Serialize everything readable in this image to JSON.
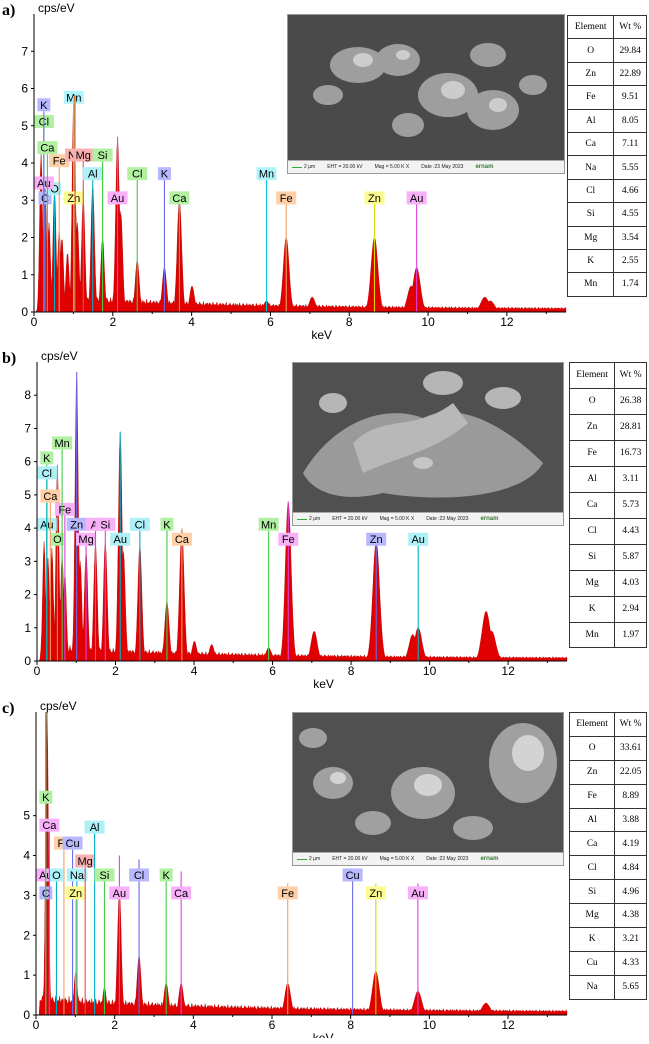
{
  "chart_data": [
    {
      "type": "line",
      "panel_label": "a)",
      "ylabel": "cps/eV",
      "xlabel": "keV",
      "xlim": [
        0,
        13.5
      ],
      "ylim": [
        0,
        8
      ],
      "x_ticks": [
        0,
        2,
        4,
        6,
        8,
        10,
        12
      ],
      "y_ticks": [
        0,
        1,
        2,
        3,
        4,
        5,
        6,
        7
      ],
      "peaks": [
        {
          "x": 0.18,
          "y": 4.3
        },
        {
          "x": 0.28,
          "y": 3.6
        },
        {
          "x": 0.38,
          "y": 2.4
        },
        {
          "x": 0.52,
          "y": 3.3
        },
        {
          "x": 0.64,
          "y": 2.2
        },
        {
          "x": 0.71,
          "y": 2.0
        },
        {
          "x": 0.85,
          "y": 1.6
        },
        {
          "x": 1.01,
          "y": 5.8
        },
        {
          "x": 1.1,
          "y": 2.4
        },
        {
          "x": 1.25,
          "y": 3.1
        },
        {
          "x": 1.49,
          "y": 3.4
        },
        {
          "x": 1.74,
          "y": 2.0
        },
        {
          "x": 2.12,
          "y": 4.7
        },
        {
          "x": 2.2,
          "y": 2.7
        },
        {
          "x": 2.62,
          "y": 1.4
        },
        {
          "x": 3.31,
          "y": 1.2
        },
        {
          "x": 3.69,
          "y": 3.0
        },
        {
          "x": 4.01,
          "y": 0.7
        },
        {
          "x": 5.9,
          "y": 0.3
        },
        {
          "x": 6.4,
          "y": 2.0
        },
        {
          "x": 7.06,
          "y": 0.4
        },
        {
          "x": 8.64,
          "y": 2.0
        },
        {
          "x": 9.57,
          "y": 0.7
        },
        {
          "x": 9.71,
          "y": 1.2
        },
        {
          "x": 11.44,
          "y": 0.4
        },
        {
          "x": 11.58,
          "y": 0.3
        }
      ],
      "element_markers": [
        {
          "x": 0.28,
          "y": 3.05,
          "label": "C",
          "color": "#6a6af0",
          "fill": "#b8b8ff"
        },
        {
          "x": 0.52,
          "y": 3.3,
          "label": "O",
          "color": "#00b0c8",
          "fill": "#aef0f8"
        },
        {
          "x": 0.64,
          "y": 4.05,
          "label": "Fe",
          "color": "#f0a060",
          "fill": "#ffd0a8"
        },
        {
          "x": 1.01,
          "y": 5.75,
          "label": "Mn",
          "color": "#00c8d8",
          "fill": "#b0f4fb"
        },
        {
          "x": 1.01,
          "y": 3.05,
          "label": "Zn",
          "color": "#d8d800",
          "fill": "#fbfb90"
        },
        {
          "x": 1.04,
          "y": 4.2,
          "label": "Na",
          "color": "#e05050",
          "fill": "#f8b0b0"
        },
        {
          "x": 1.25,
          "y": 4.2,
          "label": "Mg",
          "color": "#e05050",
          "fill": "#f8b0b0"
        },
        {
          "x": 1.49,
          "y": 3.7,
          "label": "Al",
          "color": "#00b0c8",
          "fill": "#aef0f8"
        },
        {
          "x": 1.74,
          "y": 4.2,
          "label": "Si",
          "color": "#44cc44",
          "fill": "#b0f0a0"
        },
        {
          "x": 2.12,
          "y": 3.05,
          "label": "Au",
          "color": "#e040e0",
          "fill": "#f8b0f8"
        },
        {
          "x": 0.25,
          "y": 3.45,
          "label": "Au",
          "color": "#e040e0",
          "fill": "#f8b0f8"
        },
        {
          "x": 2.62,
          "y": 3.7,
          "label": "Cl",
          "color": "#44cc44",
          "fill": "#b0f0a0"
        },
        {
          "x": 3.31,
          "y": 3.7,
          "label": "K",
          "color": "#6a6af0",
          "fill": "#b8b8ff"
        },
        {
          "x": 0.25,
          "y": 5.1,
          "label": "Cl",
          "color": "#44cc44",
          "fill": "#b0f0a0"
        },
        {
          "x": 0.25,
          "y": 5.55,
          "label": "K",
          "color": "#6a6af0",
          "fill": "#b8b8ff"
        },
        {
          "x": 0.34,
          "y": 4.4,
          "label": "Ca",
          "color": "#44cc44",
          "fill": "#b0f0a0"
        },
        {
          "x": 3.69,
          "y": 3.05,
          "label": "Ca",
          "color": "#44cc44",
          "fill": "#b0f0a0"
        },
        {
          "x": 5.9,
          "y": 3.7,
          "label": "Mn",
          "color": "#00c8d8",
          "fill": "#b0f4fb"
        },
        {
          "x": 6.4,
          "y": 3.05,
          "label": "Fe",
          "color": "#f0a060",
          "fill": "#ffd0a8"
        },
        {
          "x": 8.64,
          "y": 3.05,
          "label": "Zn",
          "color": "#d8d800",
          "fill": "#fbfb90"
        },
        {
          "x": 9.71,
          "y": 3.05,
          "label": "Au",
          "color": "#e040e0",
          "fill": "#f8b0f8"
        }
      ],
      "table": {
        "headers": [
          "Element",
          "Wt %"
        ],
        "rows": [
          [
            "O",
            "29.84"
          ],
          [
            "Zn",
            "22.89"
          ],
          [
            "Fe",
            "9.51"
          ],
          [
            "Al",
            "8.05"
          ],
          [
            "Ca",
            "7.11"
          ],
          [
            "Na",
            "5.55"
          ],
          [
            "Cl",
            "4.66"
          ],
          [
            "Si",
            "4.55"
          ],
          [
            "Mg",
            "3.54"
          ],
          [
            "K",
            "2.55"
          ],
          [
            "Mn",
            "1.74"
          ]
        ]
      },
      "sem": {
        "scale": "2 µm",
        "eht": "EHT = 20.00 kV",
        "mag": "Mag = 5.00 K X",
        "date": "Date :23 May 2023",
        "logo": "ernam"
      }
    },
    {
      "type": "line",
      "panel_label": "b)",
      "ylabel": "cps/eV",
      "xlabel": "keV",
      "xlim": [
        0,
        13.5
      ],
      "ylim": [
        0,
        9
      ],
      "x_ticks": [
        0,
        2,
        4,
        6,
        8,
        10,
        12
      ],
      "y_ticks": [
        0,
        1,
        2,
        3,
        4,
        5,
        6,
        7,
        8
      ],
      "peaks": [
        {
          "x": 0.18,
          "y": 3.6
        },
        {
          "x": 0.28,
          "y": 3.1
        },
        {
          "x": 0.38,
          "y": 3.4
        },
        {
          "x": 0.52,
          "y": 5.9
        },
        {
          "x": 0.64,
          "y": 3.2
        },
        {
          "x": 0.71,
          "y": 2.6
        },
        {
          "x": 1.01,
          "y": 8.7
        },
        {
          "x": 1.1,
          "y": 3.0
        },
        {
          "x": 1.25,
          "y": 3.3
        },
        {
          "x": 1.49,
          "y": 3.5
        },
        {
          "x": 1.74,
          "y": 3.6
        },
        {
          "x": 2.12,
          "y": 6.9
        },
        {
          "x": 2.2,
          "y": 3.3
        },
        {
          "x": 2.62,
          "y": 3.5
        },
        {
          "x": 3.31,
          "y": 1.8
        },
        {
          "x": 3.69,
          "y": 4.0
        },
        {
          "x": 4.01,
          "y": 0.6
        },
        {
          "x": 4.45,
          "y": 0.5
        },
        {
          "x": 5.9,
          "y": 0.4
        },
        {
          "x": 6.4,
          "y": 4.8
        },
        {
          "x": 7.06,
          "y": 0.9
        },
        {
          "x": 8.64,
          "y": 3.6
        },
        {
          "x": 9.57,
          "y": 0.8
        },
        {
          "x": 9.71,
          "y": 1.0
        },
        {
          "x": 11.44,
          "y": 1.5
        },
        {
          "x": 11.58,
          "y": 0.9
        }
      ],
      "element_markers": [
        {
          "x": 0.25,
          "y": 4.1,
          "label": "Au",
          "color": "#00b0c8",
          "fill": "#aef0f8"
        },
        {
          "x": 0.52,
          "y": 3.65,
          "label": "O",
          "color": "#44cc44",
          "fill": "#b0f0a0"
        },
        {
          "x": 0.71,
          "y": 4.55,
          "label": "Fe",
          "color": "#e040e0",
          "fill": "#f8b0f8"
        },
        {
          "x": 0.64,
          "y": 6.55,
          "label": "Mn",
          "color": "#44cc44",
          "fill": "#b0f0a0"
        },
        {
          "x": 0.25,
          "y": 6.1,
          "label": "K",
          "color": "#44cc44",
          "fill": "#b0f0a0"
        },
        {
          "x": 0.25,
          "y": 5.65,
          "label": "Cl",
          "color": "#00b0c8",
          "fill": "#aef0f8"
        },
        {
          "x": 0.34,
          "y": 4.95,
          "label": "Ca",
          "color": "#f0a060",
          "fill": "#ffd0a8"
        },
        {
          "x": 1.01,
          "y": 4.1,
          "label": "Zn",
          "color": "#6a6af0",
          "fill": "#b8b8ff"
        },
        {
          "x": 1.25,
          "y": 3.65,
          "label": "Mg",
          "color": "#e040e0",
          "fill": "#f8b0f8"
        },
        {
          "x": 1.49,
          "y": 4.1,
          "label": "Al",
          "color": "#e040e0",
          "fill": "#f8b0f8"
        },
        {
          "x": 1.74,
          "y": 4.1,
          "label": "Si",
          "color": "#e040e0",
          "fill": "#f8b0f8"
        },
        {
          "x": 2.12,
          "y": 3.65,
          "label": "Au",
          "color": "#00b0c8",
          "fill": "#aef0f8"
        },
        {
          "x": 2.62,
          "y": 4.1,
          "label": "Cl",
          "color": "#00b0c8",
          "fill": "#aef0f8"
        },
        {
          "x": 3.31,
          "y": 4.1,
          "label": "K",
          "color": "#44cc44",
          "fill": "#b0f0a0"
        },
        {
          "x": 3.69,
          "y": 3.65,
          "label": "Ca",
          "color": "#f0a060",
          "fill": "#ffd0a8"
        },
        {
          "x": 5.9,
          "y": 4.1,
          "label": "Mn",
          "color": "#44cc44",
          "fill": "#b0f0a0"
        },
        {
          "x": 6.4,
          "y": 3.65,
          "label": "Fe",
          "color": "#e040e0",
          "fill": "#f8b0f8"
        },
        {
          "x": 8.64,
          "y": 3.65,
          "label": "Zn",
          "color": "#6a6af0",
          "fill": "#b8b8ff"
        },
        {
          "x": 9.71,
          "y": 3.65,
          "label": "Au",
          "color": "#00b0c8",
          "fill": "#aef0f8"
        }
      ],
      "table": {
        "headers": [
          "Element",
          "Wt %"
        ],
        "rows": [
          [
            "O",
            "26.38"
          ],
          [
            "Zn",
            "28.81"
          ],
          [
            "Fe",
            "16.73"
          ],
          [
            "Al",
            "3.11"
          ],
          [
            "Ca",
            "5.73"
          ],
          [
            "Cl",
            "4.43"
          ],
          [
            "Si",
            "5.87"
          ],
          [
            "Mg",
            "4.03"
          ],
          [
            "K",
            "2.94"
          ],
          [
            "Mn",
            "1.97"
          ]
        ]
      },
      "sem": {
        "scale": "2 µm",
        "eht": "EHT = 20.00 kV",
        "mag": "Mag = 5.00 K X",
        "date": "Date :23 May 2023",
        "logo": "ernam"
      }
    },
    {
      "type": "line",
      "panel_label": "c)",
      "ylabel": "cps/eV",
      "xlabel": "keV",
      "xlim": [
        0,
        13.5
      ],
      "ylim": [
        0,
        7.6
      ],
      "x_ticks": [
        0,
        2,
        4,
        6,
        8,
        10,
        12
      ],
      "y_ticks": [
        0,
        1,
        2,
        3,
        4,
        5
      ],
      "peaks": [
        {
          "x": 0.18,
          "y": 3.3
        },
        {
          "x": 0.28,
          "y": 7.6
        },
        {
          "x": 0.38,
          "y": 2.7
        },
        {
          "x": 0.52,
          "y": 3.3
        },
        {
          "x": 0.71,
          "y": 2.3
        },
        {
          "x": 0.93,
          "y": 2.8
        },
        {
          "x": 1.01,
          "y": 2.3
        },
        {
          "x": 1.04,
          "y": 3.2
        },
        {
          "x": 1.1,
          "y": 0.8
        },
        {
          "x": 1.25,
          "y": 3.2
        },
        {
          "x": 1.49,
          "y": 2.8
        },
        {
          "x": 1.74,
          "y": 3.2
        },
        {
          "x": 2.12,
          "y": 4.0
        },
        {
          "x": 2.2,
          "y": 2.0
        },
        {
          "x": 2.62,
          "y": 3.9
        },
        {
          "x": 3.31,
          "y": 3.3
        },
        {
          "x": 3.69,
          "y": 3.6
        },
        {
          "x": 6.4,
          "y": 3.3
        },
        {
          "x": 7.06,
          "y": 0.3
        },
        {
          "x": 8.05,
          "y": 3.2
        },
        {
          "x": 8.64,
          "y": 3.3
        },
        {
          "x": 9.71,
          "y": 3.3
        },
        {
          "x": 11.44,
          "y": 1.4
        },
        {
          "x": 11.58,
          "y": 1.2
        }
      ],
      "fill_peaks": [
        {
          "x": 0.28,
          "y": 7.6
        },
        {
          "x": 1.01,
          "y": 1.1
        },
        {
          "x": 1.74,
          "y": 0.7
        },
        {
          "x": 2.12,
          "y": 3.1
        },
        {
          "x": 2.62,
          "y": 1.5
        },
        {
          "x": 3.31,
          "y": 0.8
        },
        {
          "x": 3.69,
          "y": 0.8
        },
        {
          "x": 6.4,
          "y": 0.8
        },
        {
          "x": 8.64,
          "y": 1.1
        },
        {
          "x": 9.71,
          "y": 0.6
        },
        {
          "x": 11.44,
          "y": 0.3
        }
      ],
      "element_markers": [
        {
          "x": 0.25,
          "y": 3.05,
          "label": "C",
          "color": "#6a6af0",
          "fill": "#b8b8ff"
        },
        {
          "x": 0.25,
          "y": 3.5,
          "label": "Au",
          "color": "#e040e0",
          "fill": "#f8b0f8"
        },
        {
          "x": 0.52,
          "y": 3.5,
          "label": "O",
          "color": "#00b0c8",
          "fill": "#aef0f8"
        },
        {
          "x": 0.71,
          "y": 4.3,
          "label": "Fe",
          "color": "#f0a060",
          "fill": "#ffd0a8"
        },
        {
          "x": 0.93,
          "y": 4.3,
          "label": "Cu",
          "color": "#6a6af0",
          "fill": "#b8b8ff"
        },
        {
          "x": 1.04,
          "y": 3.5,
          "label": "Na",
          "color": "#00b0c8",
          "fill": "#aef0f8"
        },
        {
          "x": 1.01,
          "y": 3.05,
          "label": "Zn",
          "color": "#d8d800",
          "fill": "#fbfb90"
        },
        {
          "x": 1.25,
          "y": 3.85,
          "label": "Mg",
          "color": "#e05050",
          "fill": "#f8b0b0"
        },
        {
          "x": 1.49,
          "y": 4.7,
          "label": "Al",
          "color": "#00b0c8",
          "fill": "#aef0f8"
        },
        {
          "x": 1.74,
          "y": 3.5,
          "label": "Si",
          "color": "#44cc44",
          "fill": "#b0f0a0"
        },
        {
          "x": 2.12,
          "y": 3.05,
          "label": "Au",
          "color": "#e040e0",
          "fill": "#f8b0f8"
        },
        {
          "x": 2.62,
          "y": 3.5,
          "label": "Cl",
          "color": "#6a6af0",
          "fill": "#b8b8ff"
        },
        {
          "x": 3.31,
          "y": 3.5,
          "label": "K",
          "color": "#44cc44",
          "fill": "#b0f0a0"
        },
        {
          "x": 0.25,
          "y": 5.45,
          "label": "K",
          "color": "#44cc44",
          "fill": "#b0f0a0"
        },
        {
          "x": 0.34,
          "y": 4.75,
          "label": "Ca",
          "color": "#e040e0",
          "fill": "#f8b0f8"
        },
        {
          "x": 3.69,
          "y": 3.05,
          "label": "Ca",
          "color": "#e040e0",
          "fill": "#f8b0f8"
        },
        {
          "x": 6.4,
          "y": 3.05,
          "label": "Fe",
          "color": "#f0a060",
          "fill": "#ffd0a8"
        },
        {
          "x": 8.05,
          "y": 3.5,
          "label": "Cu",
          "color": "#6a6af0",
          "fill": "#b8b8ff"
        },
        {
          "x": 8.64,
          "y": 3.05,
          "label": "Zn",
          "color": "#d8d800",
          "fill": "#fbfb90"
        },
        {
          "x": 9.71,
          "y": 3.05,
          "label": "Au",
          "color": "#e040e0",
          "fill": "#f8b0f8"
        }
      ],
      "table": {
        "headers": [
          "Element",
          "Wt %"
        ],
        "rows": [
          [
            "O",
            "33.61"
          ],
          [
            "Zn",
            "22.05"
          ],
          [
            "Fe",
            "8.89"
          ],
          [
            "Al",
            "3.88"
          ],
          [
            "Ca",
            "4.19"
          ],
          [
            "Cl",
            "4.84"
          ],
          [
            "Si",
            "4.96"
          ],
          [
            "Mg",
            "4.38"
          ],
          [
            "K",
            "3.21"
          ],
          [
            "Cu",
            "4.33"
          ],
          [
            "Na",
            "5.65"
          ]
        ]
      },
      "sem": {
        "scale": "2 µm",
        "eht": "EHT = 20.00 kV",
        "mag": "Mag = 5.00 K X",
        "date": "Date :23 May 2023",
        "logo": "ernam"
      }
    }
  ],
  "colors": {
    "spectrum_fill": "#e00000",
    "axis": "#000000",
    "background": "#ffffff"
  }
}
